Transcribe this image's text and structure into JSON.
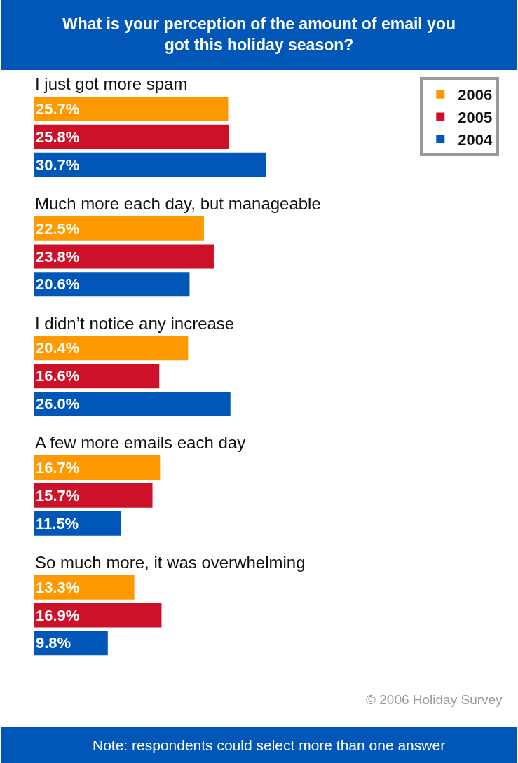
{
  "chart_data": {
    "type": "bar",
    "orientation": "horizontal",
    "title": "What is your perception of the amount of email you got this holiday season?",
    "categories": [
      "I just got more spam",
      "Much more each day, but manageable",
      "I didn’t notice any increase",
      "A few more emails each day",
      "So much more, it was overwhelming"
    ],
    "series": [
      {
        "name": "2006",
        "color": "#ff9900",
        "values": [
          25.7,
          22.5,
          20.4,
          16.7,
          13.3
        ],
        "value_labels": [
          "25.7%",
          "22.5%",
          "20.4%",
          "16.7%",
          "13.3%"
        ]
      },
      {
        "name": "2005",
        "color": "#cc1128",
        "values": [
          25.8,
          23.8,
          16.6,
          15.7,
          16.9
        ],
        "value_labels": [
          "25.8%",
          "23.8%",
          "16.6%",
          "15.7%",
          "16.9%"
        ]
      },
      {
        "name": "2004",
        "color": "#0057b8",
        "values": [
          30.7,
          20.6,
          26.0,
          11.5,
          9.8
        ],
        "value_labels": [
          "30.7%",
          "20.6%",
          "26.0%",
          "11.5%",
          "9.8%"
        ]
      }
    ],
    "tick_labels": false,
    "grid": false,
    "legend": "top right",
    "annotations": [
      "© 2006 Holiday Survey",
      "Note: respondents could select more than one answer"
    ]
  }
}
